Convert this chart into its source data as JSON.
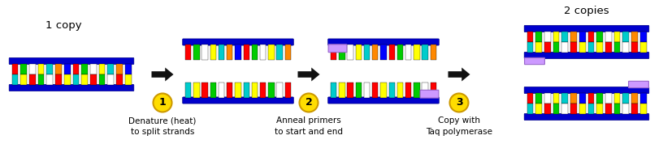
{
  "background": "#ffffff",
  "rail_color": "#0000cc",
  "rail_edge": "#000088",
  "primer_color": "#cc99ff",
  "primer_edge": "#9966cc",
  "circle_color": "#ffdd00",
  "circle_edge": "#cc9900",
  "arrow_color": "#111111",
  "base_colors_top": [
    "#ff0000",
    "#00cc00",
    "#ffffff",
    "#ffff00",
    "#00cccc",
    "#ff8800",
    "#0000ff"
  ],
  "base_colors_bot": [
    "#00cccc",
    "#ffff00",
    "#ff0000",
    "#00cc00",
    "#ffffff",
    "#ff0000",
    "#ffff00"
  ],
  "label1": "1 copy",
  "label2": "2 copies",
  "step1": "Denature (heat)\nto split strands",
  "step2": "Anneal primers\nto start and end",
  "step3": "Copy with\nTaq polymerase"
}
